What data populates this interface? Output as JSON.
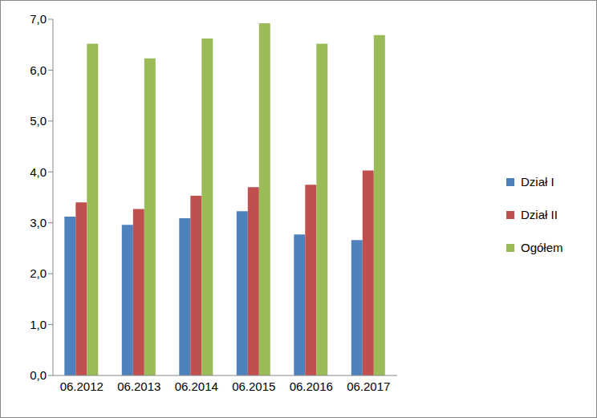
{
  "chart_data": {
    "type": "bar",
    "categories": [
      "06.2012",
      "06.2013",
      "06.2014",
      "06.2015",
      "06.2016",
      "06.2017"
    ],
    "series": [
      {
        "name": "Dział I",
        "color": "#4f81bd",
        "values": [
          3.12,
          2.96,
          3.09,
          3.23,
          2.77,
          2.66
        ]
      },
      {
        "name": "Dział II",
        "color": "#c0504d",
        "values": [
          3.4,
          3.27,
          3.53,
          3.7,
          3.75,
          4.03
        ]
      },
      {
        "name": "Ogółem",
        "color": "#9bbb59",
        "values": [
          6.52,
          6.23,
          6.62,
          6.92,
          6.52,
          6.69
        ]
      }
    ],
    "ylim": [
      0,
      7
    ],
    "yticks": [
      {
        "value": 0,
        "label": "0,0"
      },
      {
        "value": 1,
        "label": "1,0"
      },
      {
        "value": 2,
        "label": "2,0"
      },
      {
        "value": 3,
        "label": "3,0"
      },
      {
        "value": 4,
        "label": "4,0"
      },
      {
        "value": 5,
        "label": "5,0"
      },
      {
        "value": 6,
        "label": "6,0"
      },
      {
        "value": 7,
        "label": "7,0"
      }
    ],
    "grid": false,
    "legend": "right"
  }
}
